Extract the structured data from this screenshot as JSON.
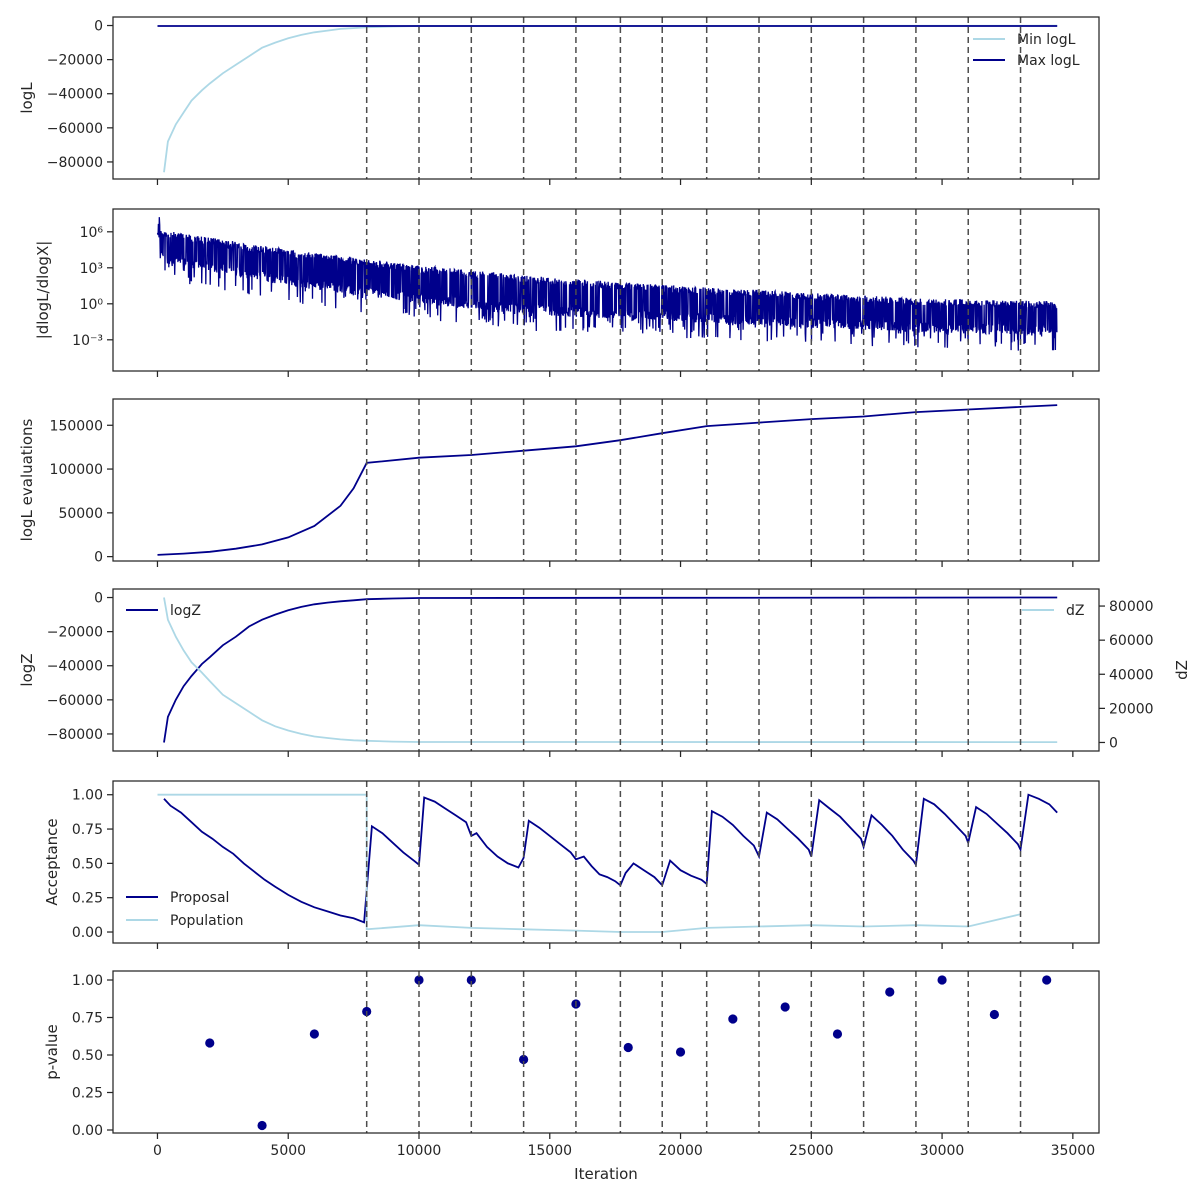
{
  "colors": {
    "dark": "#00008b",
    "light": "#add8e6",
    "vline": "#4d4d4d"
  },
  "chart_data": [
    {
      "type": "line",
      "ylabel": "logL",
      "xlim": [
        -1700,
        36000
      ],
      "ylim": [
        -90000,
        5000
      ],
      "yticks": [
        0,
        -20000,
        -40000,
        -60000,
        -80000
      ],
      "ytick_labels": [
        "0",
        "−20000",
        "−40000",
        "−60000",
        "−80000"
      ],
      "legend": "top-right",
      "series": [
        {
          "name": "Min logL",
          "color": "#add8e6",
          "x": [
            250,
            400,
            700,
            1000,
            1300,
            1700,
            2000,
            2500,
            3000,
            3500,
            4000,
            4500,
            5000,
            5500,
            6000,
            6500,
            7000,
            7500,
            8000,
            9000,
            10000,
            34400
          ],
          "y": [
            -86000,
            -68000,
            -58000,
            -51000,
            -44000,
            -38000,
            -34000,
            -28000,
            -23000,
            -18000,
            -13000,
            -10000,
            -7500,
            -5500,
            -4000,
            -3000,
            -2000,
            -1500,
            -1000,
            -600,
            -300,
            -100
          ]
        },
        {
          "name": "Max logL",
          "color": "#00008b",
          "x": [
            0,
            34400
          ],
          "y": [
            -300,
            -300
          ]
        }
      ]
    },
    {
      "type": "line",
      "ylabel": "|dlogL/dlogX|",
      "yscale": "log",
      "xlim": [
        -1700,
        36000
      ],
      "ylim": [
        -5.6,
        7.9
      ],
      "yticks": [
        6,
        3,
        0,
        -3
      ],
      "ytick_labels": [
        "10⁶",
        "10³",
        "10⁰",
        "10⁻³"
      ],
      "series": [
        {
          "name": "",
          "color": "#00008b",
          "x": [
            0,
            5000,
            10000,
            15000,
            20000,
            25000,
            30000,
            34400
          ],
          "y_upper": [
            6.2,
            4.5,
            3.2,
            2.2,
            1.5,
            0.9,
            0.4,
            0.2
          ],
          "y_lower": [
            3.5,
            1.5,
            0.0,
            -1.0,
            -1.5,
            -2.0,
            -2.4,
            -2.6
          ]
        }
      ]
    },
    {
      "type": "line",
      "ylabel": "logL evaluations",
      "xlim": [
        -1700,
        36000
      ],
      "ylim": [
        -5000,
        180000
      ],
      "yticks": [
        0,
        50000,
        100000,
        150000
      ],
      "ytick_labels": [
        "0",
        "50000",
        "100000",
        "150000"
      ],
      "series": [
        {
          "name": "",
          "color": "#00008b",
          "x": [
            0,
            1000,
            2000,
            3000,
            4000,
            5000,
            6000,
            7000,
            7500,
            8000,
            10000,
            12000,
            14000,
            16000,
            17700,
            19300,
            21000,
            23000,
            25000,
            27000,
            29000,
            31000,
            33000,
            34400
          ],
          "y": [
            2000,
            3500,
            5500,
            9000,
            14000,
            22000,
            35000,
            58000,
            78000,
            107000,
            113000,
            116000,
            121000,
            126000,
            133000,
            141000,
            149000,
            153000,
            157000,
            160000,
            165000,
            168000,
            171000,
            173000
          ]
        }
      ]
    },
    {
      "type": "line",
      "ylabel": "logZ",
      "y2label": "dZ",
      "xlim": [
        -1700,
        36000
      ],
      "ylim": [
        -90000,
        5000
      ],
      "y2lim": [
        -5000,
        90000
      ],
      "yticks": [
        0,
        -20000,
        -40000,
        -60000,
        -80000
      ],
      "ytick_labels": [
        "0",
        "−20000",
        "−40000",
        "−60000",
        "−80000"
      ],
      "y2ticks": [
        0,
        20000,
        40000,
        60000,
        80000
      ],
      "y2tick_labels": [
        "0",
        "20000",
        "40000",
        "60000",
        "80000"
      ],
      "series": [
        {
          "name": "logZ",
          "color": "#00008b",
          "axis": "left",
          "x": [
            250,
            400,
            700,
            1000,
            1300,
            1700,
            2000,
            2500,
            3000,
            3500,
            4000,
            4500,
            5000,
            5500,
            6000,
            6500,
            7000,
            7500,
            8000,
            9000,
            10000,
            34400
          ],
          "y": [
            -85000,
            -70000,
            -60000,
            -52000,
            -46000,
            -39000,
            -35000,
            -28000,
            -23000,
            -17000,
            -13000,
            -10000,
            -7500,
            -5500,
            -4000,
            -3000,
            -2200,
            -1600,
            -1000,
            -600,
            -300,
            0
          ]
        },
        {
          "name": "dZ",
          "color": "#add8e6",
          "axis": "right",
          "x": [
            250,
            400,
            700,
            1000,
            1300,
            1700,
            2000,
            2500,
            3000,
            3500,
            4000,
            4500,
            5000,
            5500,
            6000,
            6500,
            7000,
            7500,
            8000,
            9000,
            10000,
            34400
          ],
          "y": [
            85000,
            72000,
            62000,
            54000,
            47000,
            41000,
            36000,
            28000,
            23000,
            18000,
            13000,
            9500,
            7000,
            5000,
            3500,
            2600,
            1800,
            1300,
            1000,
            500,
            300,
            200
          ]
        }
      ]
    },
    {
      "type": "line",
      "ylabel": "Acceptance",
      "xlim": [
        -1700,
        36000
      ],
      "ylim": [
        -0.08,
        1.1
      ],
      "yticks": [
        0,
        0.25,
        0.5,
        0.75,
        1
      ],
      "ytick_labels": [
        "0.00",
        "0.25",
        "0.50",
        "0.75",
        "1.00"
      ],
      "legend": "bottom-left",
      "series": [
        {
          "name": "Proposal",
          "color": "#00008b",
          "x": [
            250,
            500,
            900,
            1300,
            1700,
            2100,
            2500,
            2900,
            3300,
            3700,
            4100,
            4500,
            5000,
            5500,
            6000,
            6500,
            7000,
            7500,
            7900,
            8200,
            8600,
            9000,
            9400,
            9800,
            10000,
            10200,
            10600,
            11000,
            11400,
            11800,
            12000,
            12200,
            12600,
            13000,
            13400,
            13800,
            14000,
            14200,
            14600,
            15000,
            15400,
            15800,
            16000,
            16300,
            16600,
            16900,
            17200,
            17500,
            17700,
            17900,
            18200,
            18600,
            19000,
            19300,
            19600,
            20000,
            20400,
            20800,
            21000,
            21200,
            21600,
            22000,
            22400,
            22800,
            23000,
            23300,
            23700,
            24100,
            24500,
            24900,
            25000,
            25300,
            25700,
            26100,
            26500,
            26900,
            27000,
            27300,
            27700,
            28100,
            28500,
            28900,
            29000,
            29300,
            29700,
            30100,
            30500,
            30900,
            31000,
            31300,
            31700,
            32100,
            32500,
            32900,
            33000,
            33300,
            33700,
            34100,
            34400
          ],
          "y": [
            0.97,
            0.92,
            0.87,
            0.8,
            0.73,
            0.68,
            0.62,
            0.57,
            0.5,
            0.44,
            0.38,
            0.33,
            0.27,
            0.22,
            0.18,
            0.15,
            0.12,
            0.1,
            0.07,
            0.77,
            0.72,
            0.65,
            0.58,
            0.52,
            0.49,
            0.98,
            0.95,
            0.9,
            0.85,
            0.8,
            0.7,
            0.72,
            0.62,
            0.55,
            0.5,
            0.47,
            0.54,
            0.81,
            0.76,
            0.7,
            0.64,
            0.58,
            0.53,
            0.55,
            0.48,
            0.42,
            0.4,
            0.37,
            0.34,
            0.43,
            0.5,
            0.45,
            0.4,
            0.34,
            0.52,
            0.45,
            0.41,
            0.38,
            0.35,
            0.88,
            0.84,
            0.78,
            0.7,
            0.63,
            0.55,
            0.87,
            0.82,
            0.75,
            0.68,
            0.6,
            0.55,
            0.96,
            0.9,
            0.84,
            0.76,
            0.68,
            0.62,
            0.85,
            0.78,
            0.7,
            0.6,
            0.52,
            0.49,
            0.97,
            0.93,
            0.86,
            0.78,
            0.7,
            0.65,
            0.91,
            0.86,
            0.79,
            0.72,
            0.64,
            0.6,
            1.0,
            0.97,
            0.93,
            0.87
          ]
        },
        {
          "name": "Population",
          "color": "#add8e6",
          "x": [
            0,
            8000,
            8000,
            8000,
            10000,
            12000,
            14000,
            16000,
            17700,
            19300,
            21000,
            23000,
            25000,
            27000,
            29000,
            31000,
            33000
          ],
          "y": [
            1.0,
            1.0,
            0.06,
            0.02,
            0.05,
            0.03,
            0.02,
            0.01,
            0.0,
            0.0,
            0.03,
            0.04,
            0.05,
            0.04,
            0.05,
            0.04,
            0.13
          ]
        }
      ]
    },
    {
      "type": "scatter",
      "ylabel": "p-value",
      "xlabel": "Iteration",
      "xlim": [
        -1700,
        36000
      ],
      "ylim": [
        -0.02,
        1.06
      ],
      "yticks": [
        0,
        0.25,
        0.5,
        0.75,
        1
      ],
      "ytick_labels": [
        "0.00",
        "0.25",
        "0.50",
        "0.75",
        "1.00"
      ],
      "xticks": [
        0,
        5000,
        10000,
        15000,
        20000,
        25000,
        30000,
        35000
      ],
      "xtick_labels": [
        "0",
        "5000",
        "10000",
        "15000",
        "20000",
        "25000",
        "30000",
        "35000"
      ],
      "series": [
        {
          "name": "",
          "color": "#00008b",
          "x": [
            2000,
            4000,
            6000,
            8000,
            10000,
            12000,
            14000,
            16000,
            18000,
            20000,
            22000,
            24000,
            26000,
            28000,
            30000,
            32000,
            34000
          ],
          "y": [
            0.58,
            0.03,
            0.64,
            0.79,
            1.0,
            1.0,
            0.47,
            0.84,
            0.55,
            0.52,
            0.74,
            0.82,
            0.64,
            0.92,
            1.0,
            0.77,
            1.0
          ]
        }
      ]
    }
  ],
  "vlines": [
    8000,
    10000,
    12000,
    14000,
    16000,
    17700,
    19300,
    21000,
    23000,
    25000,
    27000,
    29000,
    31000,
    33000
  ]
}
